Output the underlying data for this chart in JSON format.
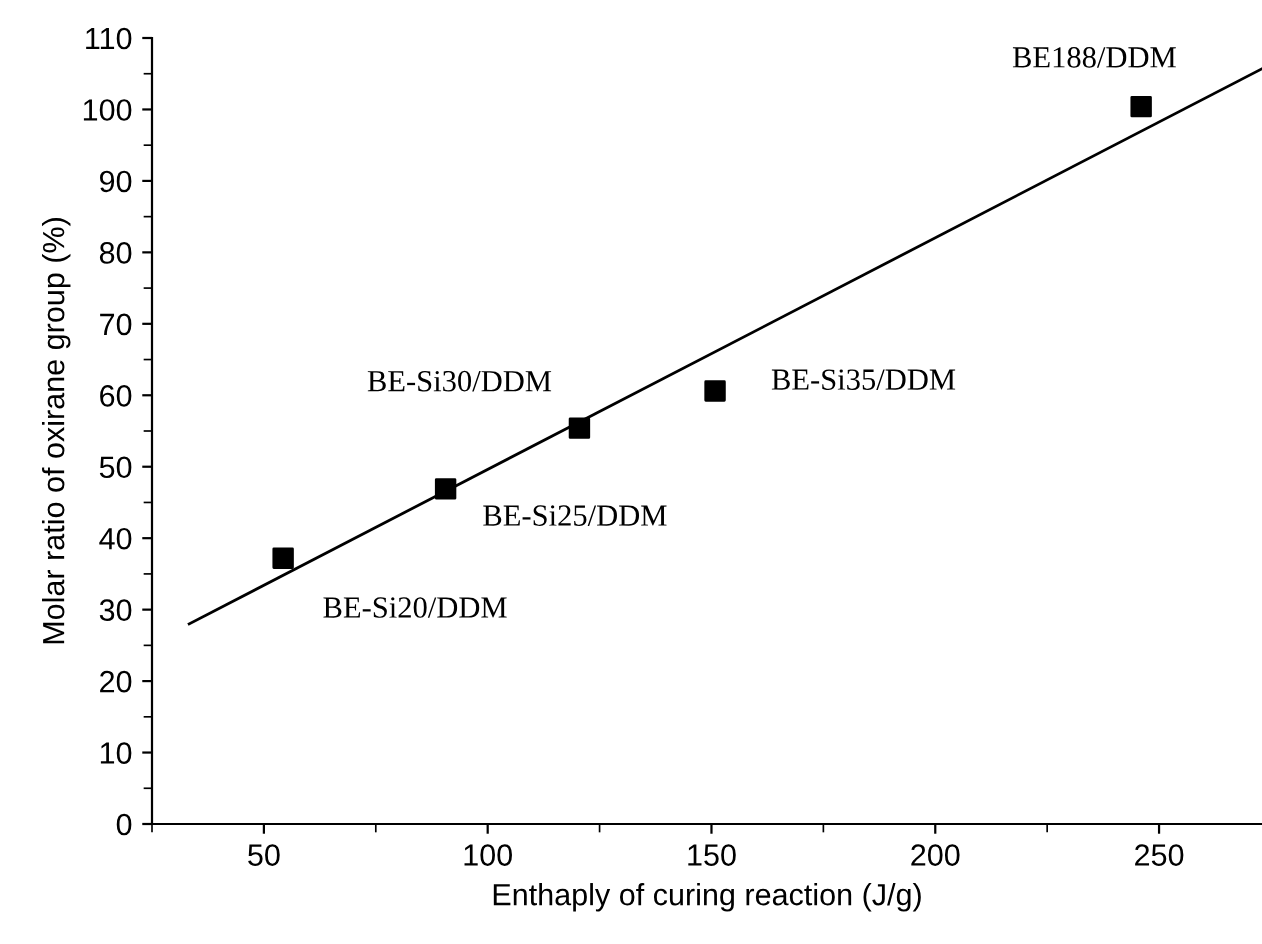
{
  "chart_data": {
    "type": "scatter",
    "xlabel": "Enthaply of curing reaction (J/g)",
    "ylabel": "Molar ratio of oxirane group (%)",
    "xlim": [
      25,
      273
    ],
    "xticks": [
      50,
      100,
      150,
      200,
      250
    ],
    "ylim": [
      0,
      110
    ],
    "yticks": [
      0,
      10,
      20,
      30,
      40,
      50,
      60,
      70,
      80,
      90,
      100,
      110
    ],
    "grid": false,
    "legend": false,
    "series": [
      {
        "marker": "square",
        "color": "#000000",
        "x": [
          54.3,
          90.6,
          120.5,
          150.8,
          246
        ],
        "values": [
          37.2,
          46.9,
          55.4,
          60.6,
          100.4
        ]
      },
      {
        "type": "line",
        "color": "#000000",
        "x": [
          33.3,
          273
        ],
        "values": [
          28.0,
          105.7
        ],
        "line_style": "solid"
      }
    ],
    "annotations": [
      "BE-Si20/DDM",
      "BE-Si25/DDM",
      "BE-Si30/DDM",
      "BE-Si35/DDM",
      "BE188/DDM"
    ]
  }
}
